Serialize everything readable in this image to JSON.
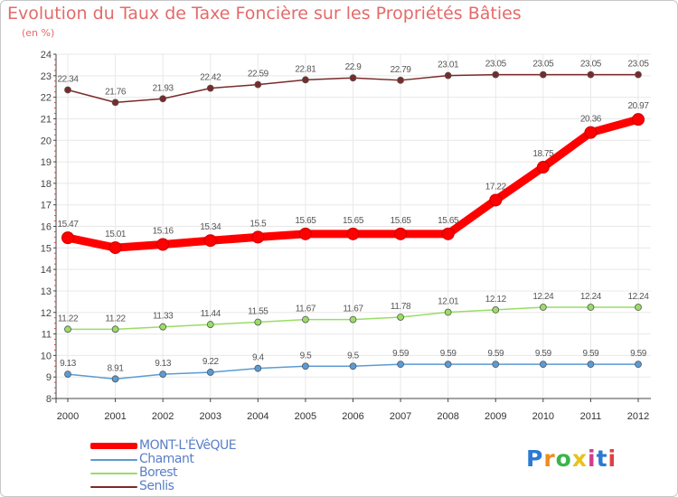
{
  "title": "Evolution du Taux de Taxe Foncière sur les Propriétés Bâties",
  "subtitle": "(en %)",
  "logo": "Proxiti",
  "chart_data": {
    "type": "line",
    "title": "Evolution du Taux de Taxe Foncière sur les Propriétés Bâties",
    "ylabel": "(en %)",
    "xlabel": "",
    "categories": [
      "2000",
      "2001",
      "2002",
      "2003",
      "2004",
      "2005",
      "2006",
      "2007",
      "2008",
      "2009",
      "2010",
      "2011",
      "2012"
    ],
    "ylim": [
      8,
      24
    ],
    "yticks": [
      "8",
      "9",
      "10",
      "11",
      "12",
      "13",
      "14",
      "15",
      "16",
      "17",
      "18",
      "19",
      "20",
      "21",
      "22",
      "23",
      "24"
    ],
    "legend_position": "bottom-left",
    "series": [
      {
        "name": "MONT-L'ÉVêQUE",
        "color": "#ff0000",
        "values": [
          15.47,
          15.01,
          15.16,
          15.34,
          15.5,
          15.65,
          15.65,
          15.65,
          15.65,
          17.22,
          18.75,
          20.36,
          20.97
        ],
        "labels": [
          "15.47",
          "15.01",
          "15.16",
          "15.34",
          "15.5",
          "15.65",
          "15.65",
          "15.65",
          "15.65",
          "17.22",
          "18.75",
          "20.36",
          "20.97"
        ]
      },
      {
        "name": "Chamant",
        "color": "#5b9bd5",
        "values": [
          9.13,
          8.91,
          9.13,
          9.22,
          9.4,
          9.5,
          9.5,
          9.59,
          9.59,
          9.59,
          9.59,
          9.59,
          9.59
        ],
        "labels": [
          "9.13",
          "8.91",
          "9.13",
          "9.22",
          "9.4",
          "9.5",
          "9.5",
          "9.59",
          "9.59",
          "9.59",
          "9.59",
          "9.59",
          "9.59"
        ]
      },
      {
        "name": "Borest",
        "color": "#99dd66",
        "values": [
          11.22,
          11.22,
          11.33,
          11.44,
          11.55,
          11.67,
          11.67,
          11.78,
          12.01,
          12.12,
          12.24,
          12.24,
          12.24
        ],
        "labels": [
          "11.22",
          "11.22",
          "11.33",
          "11.44",
          "11.55",
          "11.67",
          "11.67",
          "11.78",
          "12.01",
          "12.12",
          "12.24",
          "12.24",
          "12.24"
        ]
      },
      {
        "name": "Senlis",
        "color": "#7a2a2a",
        "values": [
          22.34,
          21.76,
          21.93,
          22.42,
          22.59,
          22.81,
          22.9,
          22.79,
          23.01,
          23.05,
          23.05,
          23.05,
          23.05
        ],
        "labels": [
          "22.34",
          "21.76",
          "21.93",
          "22.42",
          "22.59",
          "22.81",
          "22.9",
          "22.79",
          "23.01",
          "23.05",
          "23.05",
          "23.05",
          "23.05"
        ]
      }
    ]
  }
}
